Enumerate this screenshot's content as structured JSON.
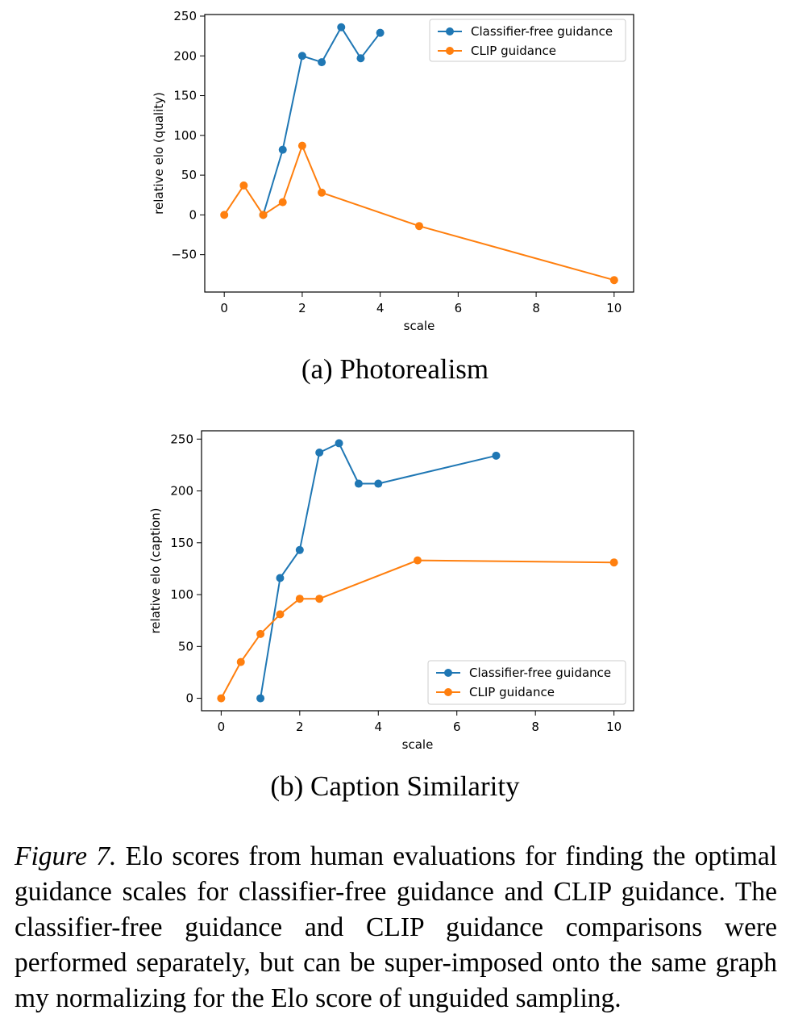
{
  "chart_data": [
    {
      "type": "line",
      "id": "a",
      "subcaption": "(a) Photorealism",
      "xlabel": "scale",
      "ylabel": "relative elo (quality)",
      "xlim": [
        -0.5,
        10.5
      ],
      "ylim": [
        -97,
        252
      ],
      "xticks": [
        0,
        2,
        4,
        6,
        8,
        10
      ],
      "yticks": [
        -50,
        0,
        50,
        100,
        150,
        200,
        250
      ],
      "legend_position": "top-right",
      "series": [
        {
          "name": "Classifier-free guidance",
          "color": "#1f77b4",
          "x": [
            1,
            1.5,
            2,
            2.5,
            3,
            3.5,
            4
          ],
          "y": [
            0,
            82,
            200,
            192,
            236,
            197,
            229
          ]
        },
        {
          "name": "CLIP guidance",
          "color": "#ff7f0e",
          "x": [
            0,
            0.5,
            1,
            1.5,
            2,
            2.5,
            5,
            10
          ],
          "y": [
            0,
            37,
            0,
            16,
            87,
            28,
            -14,
            -82
          ]
        }
      ]
    },
    {
      "type": "line",
      "id": "b",
      "subcaption": "(b) Caption Similarity",
      "xlabel": "scale",
      "ylabel": "relative elo (caption)",
      "xlim": [
        -0.5,
        10.5
      ],
      "ylim": [
        -12,
        258
      ],
      "xticks": [
        0,
        2,
        4,
        6,
        8,
        10
      ],
      "yticks": [
        0,
        50,
        100,
        150,
        200,
        250
      ],
      "legend_position": "bottom-right",
      "series": [
        {
          "name": "Classifier-free guidance",
          "color": "#1f77b4",
          "x": [
            1,
            1.5,
            2,
            2.5,
            3,
            3.5,
            4,
            7
          ],
          "y": [
            0,
            116,
            143,
            237,
            246,
            207,
            207,
            234
          ]
        },
        {
          "name": "CLIP guidance",
          "color": "#ff7f0e",
          "x": [
            0,
            0.5,
            1,
            1.5,
            2,
            2.5,
            5,
            10
          ],
          "y": [
            0,
            35,
            62,
            81,
            96,
            96,
            133,
            131
          ]
        }
      ]
    }
  ],
  "figure_caption": {
    "label": "Figure 7.",
    "text": " Elo scores from human evaluations for finding the optimal guidance scales for classifier-free guidance and CLIP guidance. The classifier-free guidance and CLIP guidance comparisons were performed separately, but can be super-imposed onto the same graph my normalizing for the Elo score of unguided sampling."
  }
}
